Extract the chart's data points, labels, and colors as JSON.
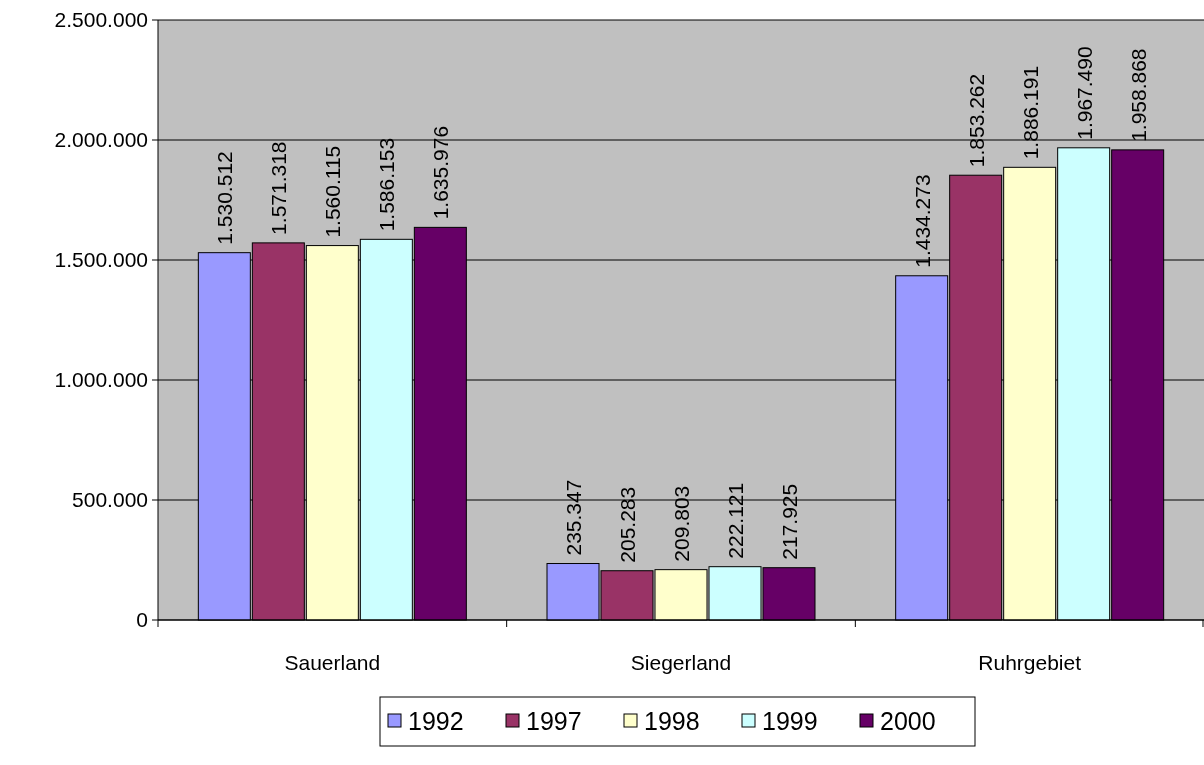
{
  "chart_data": {
    "type": "bar",
    "categories": [
      "Sauerland",
      "Siegerland",
      "Ruhrgebiet"
    ],
    "series": [
      {
        "name": "1992",
        "color": "#9999ff",
        "values": [
          1530512,
          235347,
          1434273
        ],
        "value_labels": [
          "1.530.512",
          "235.347",
          "1.434.273"
        ]
      },
      {
        "name": "1997",
        "color": "#993366",
        "values": [
          1571318,
          205283,
          1853262
        ],
        "value_labels": [
          "1.571.318",
          "205.283",
          "1.853.262"
        ]
      },
      {
        "name": "1998",
        "color": "#ffffcc",
        "values": [
          1560115,
          209803,
          1886191
        ],
        "value_labels": [
          "1.560.115",
          "209.803",
          "1.886.191"
        ]
      },
      {
        "name": "1999",
        "color": "#ccffff",
        "values": [
          1586153,
          222121,
          1967490
        ],
        "value_labels": [
          "1.586.153",
          "222.121",
          "1.967.490"
        ]
      },
      {
        "name": "2000",
        "color": "#660066",
        "values": [
          1635976,
          217925,
          1958868
        ],
        "value_labels": [
          "1.635.976",
          "217.925",
          "1.958.868"
        ]
      }
    ],
    "ylim": [
      0,
      2500000
    ],
    "yticks": [
      0,
      {
        "value": 500000,
        "label": "500.000"
      },
      {
        "value": 1000000,
        "label": "1.000.000"
      },
      {
        "value": 1500000,
        "label": "1.500.000"
      },
      {
        "value": 2000000,
        "label": "2.000.000"
      },
      {
        "value": 2500000,
        "label": "2.500.000"
      }
    ],
    "grid": "y",
    "legend": "bottom"
  }
}
